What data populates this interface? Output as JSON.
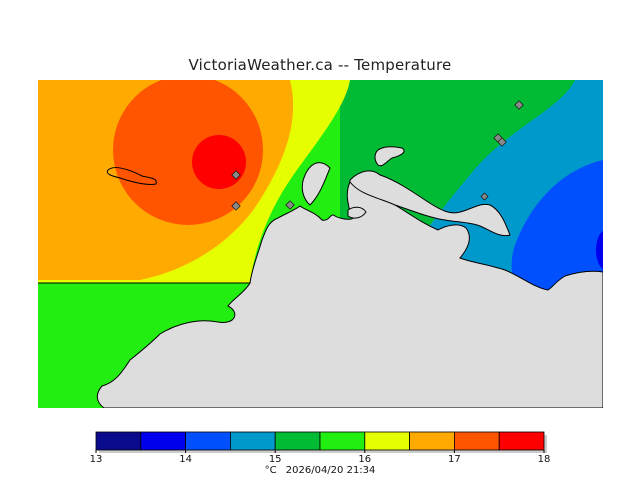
{
  "title": "VictoriaWeather.ca -- Temperature",
  "units": "°C",
  "timestamp": "2026/04/20 21:34",
  "legend": {
    "ticks": [
      "13",
      "14",
      "15",
      "16",
      "17",
      "18"
    ],
    "min": 13,
    "max": 18,
    "step": 0.5,
    "colors": [
      "#0a0a8c",
      "#0000ee",
      "#0050ff",
      "#0099cc",
      "#00bb33",
      "#22ee11",
      "#e6ff00",
      "#ffaa00",
      "#ff5500",
      "#ff0000"
    ]
  },
  "map": {
    "land_color": "#dddddd",
    "station_color": "#888888"
  }
}
